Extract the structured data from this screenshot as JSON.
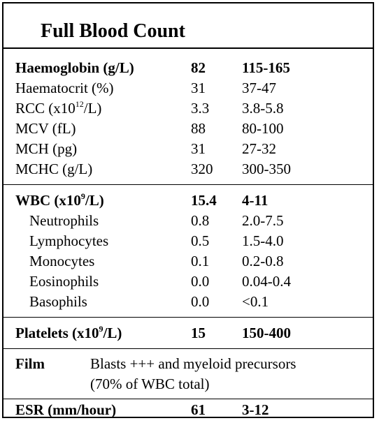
{
  "title": "Full Blood Count",
  "red_cells": [
    {
      "label": "Haemoglobin (g/L)",
      "value": "82",
      "range": "115-165",
      "bold": true
    },
    {
      "label": "Haematocrit (%)",
      "value": "31",
      "range": "37-47"
    },
    {
      "label_pre": "RCC  (x10",
      "label_sup": "12",
      "label_post": "/L)",
      "value": "3.3",
      "range": "3.8-5.8"
    },
    {
      "label": "MCV  (fL)",
      "value": "88",
      "range": "80-100"
    },
    {
      "label": "MCH  (pg)",
      "value": "31",
      "range": "27-32"
    },
    {
      "label": "MCHC (g/L)",
      "value": "320",
      "range": "300-350"
    }
  ],
  "wbc": {
    "label_pre": "WBC   (x10",
    "label_sup": "9",
    "label_post": "/L)",
    "value": "15.4",
    "range": "4-11"
  },
  "differential": [
    {
      "label": "Neutrophils",
      "value": "0.8",
      "range": "2.0-7.5"
    },
    {
      "label": "Lymphocytes",
      "value": "0.5",
      "range": "1.5-4.0"
    },
    {
      "label": "Monocytes",
      "value": "0.1",
      "range": "0.2-0.8"
    },
    {
      "label": "Eosinophils",
      "value": "0.0",
      "range": "0.04-0.4"
    },
    {
      "label": "Basophils",
      "value": "0.0",
      "range": "<0.1"
    }
  ],
  "platelets": {
    "label_pre": "Platelets (x10",
    "label_sup": "9",
    "label_post": "/L)",
    "value": "15",
    "range": "150-400"
  },
  "film": {
    "label": "Film",
    "line1": "Blasts +++ and myeloid precursors",
    "line2": "(70% of WBC total)"
  },
  "esr": {
    "label": "ESR (mm/hour)",
    "value": "61",
    "range": "3-12"
  }
}
